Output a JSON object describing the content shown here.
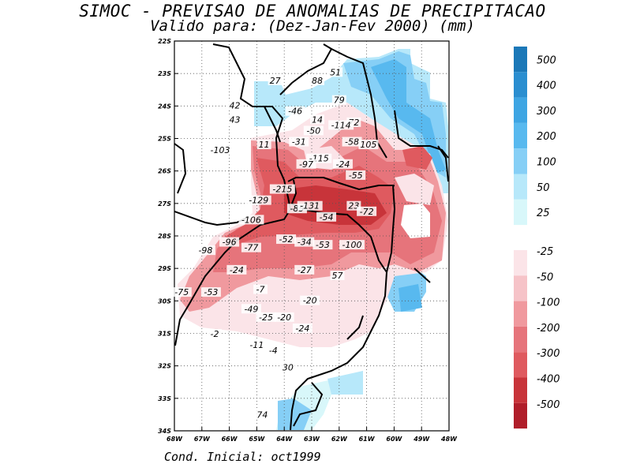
{
  "title": "SIMOC - PREVISAO DE ANOMALIAS DE PRECIPITACAO",
  "subtitle": "Valido para: (Dez-Jan-Fev 2000) (mm)",
  "footer": "Cond. Inicial: oct1999",
  "axes": {
    "lat_ticks": [
      "22S",
      "23S",
      "24S",
      "25S",
      "26S",
      "27S",
      "28S",
      "29S",
      "30S",
      "31S",
      "32S",
      "33S",
      "34S"
    ],
    "lon_ticks": [
      "68W",
      "67W",
      "66W",
      "65W",
      "64W",
      "63W",
      "62W",
      "61W",
      "60W",
      "49W",
      "48W"
    ]
  },
  "colorbar": {
    "positive": [
      "500",
      "400",
      "300",
      "200",
      "100",
      "50",
      "25"
    ],
    "negative": [
      "-25",
      "-50",
      "-100",
      "-200",
      "-300",
      "-400",
      "-500"
    ]
  },
  "labels": [
    {
      "text": "27",
      "lon": -63.5,
      "lat": -23.5
    },
    {
      "text": "88",
      "lon": -61.2,
      "lat": -23.5
    },
    {
      "text": "51",
      "lon": -60.2,
      "lat": -23.2
    },
    {
      "text": "79",
      "lon": -60.0,
      "lat": -24.2
    },
    {
      "text": "42",
      "lon": -65.7,
      "lat": -24.4
    },
    {
      "text": "43",
      "lon": -65.7,
      "lat": -24.9
    },
    {
      "text": "-46",
      "lon": -62.4,
      "lat": -24.6
    },
    {
      "text": "14",
      "lon": -61.2,
      "lat": -24.9
    },
    {
      "text": "72",
      "lon": -59.2,
      "lat": -25.0
    },
    {
      "text": "-50",
      "lon": -61.4,
      "lat": -25.3
    },
    {
      "text": "-114",
      "lon": -59.9,
      "lat": -25.1
    },
    {
      "text": "-103",
      "lon": -66.5,
      "lat": -26.0
    },
    {
      "text": "11",
      "lon": -64.1,
      "lat": -25.8
    },
    {
      "text": "-31",
      "lon": -62.2,
      "lat": -25.7
    },
    {
      "text": "-58",
      "lon": -59.3,
      "lat": -25.7
    },
    {
      "text": "105",
      "lon": -58.4,
      "lat": -25.8
    },
    {
      "text": "-115",
      "lon": -61.1,
      "lat": -26.3
    },
    {
      "text": "-24",
      "lon": -59.8,
      "lat": -26.5
    },
    {
      "text": "-97",
      "lon": -61.8,
      "lat": -26.5
    },
    {
      "text": "-55",
      "lon": -59.1,
      "lat": -26.9
    },
    {
      "text": "-215",
      "lon": -63.1,
      "lat": -27.4
    },
    {
      "text": "23",
      "lon": -59.2,
      "lat": -28.0
    },
    {
      "text": "-72",
      "lon": -58.5,
      "lat": -28.2
    },
    {
      "text": "-129",
      "lon": -64.4,
      "lat": -27.8
    },
    {
      "text": "-85",
      "lon": -62.3,
      "lat": -28.1
    },
    {
      "text": "-131",
      "lon": -61.6,
      "lat": -28.0
    },
    {
      "text": "-54",
      "lon": -60.7,
      "lat": -28.4
    },
    {
      "text": "-106",
      "lon": -64.8,
      "lat": -28.5
    },
    {
      "text": "-52",
      "lon": -62.9,
      "lat": -29.2
    },
    {
      "text": "-34",
      "lon": -61.9,
      "lat": -29.3
    },
    {
      "text": "-53",
      "lon": -60.9,
      "lat": -29.4
    },
    {
      "text": "-100",
      "lon": -59.3,
      "lat": -29.4
    },
    {
      "text": "-96",
      "lon": -66.0,
      "lat": -29.3
    },
    {
      "text": "-77",
      "lon": -64.8,
      "lat": -29.5
    },
    {
      "text": "-98",
      "lon": -67.3,
      "lat": -29.6
    },
    {
      "text": "-24",
      "lon": -65.6,
      "lat": -30.3
    },
    {
      "text": "-27",
      "lon": -61.9,
      "lat": -30.3
    },
    {
      "text": "57",
      "lon": -60.1,
      "lat": -30.5
    },
    {
      "text": "-7",
      "lon": -64.3,
      "lat": -31.0
    },
    {
      "text": "-75",
      "lon": -68.6,
      "lat": -31.1
    },
    {
      "text": "-53",
      "lon": -67.0,
      "lat": -31.1
    },
    {
      "text": "-20",
      "lon": -61.6,
      "lat": -31.4
    },
    {
      "text": "-49",
      "lon": -64.8,
      "lat": -31.7
    },
    {
      "text": "-25",
      "lon": -64.0,
      "lat": -32.0
    },
    {
      "text": "-20",
      "lon": -63.0,
      "lat": -32.0
    },
    {
      "text": "-24",
      "lon": -62.0,
      "lat": -32.4
    },
    {
      "text": "-2",
      "lon": -66.8,
      "lat": -32.6
    },
    {
      "text": "-11",
      "lon": -64.5,
      "lat": -33.0
    },
    {
      "text": "-4",
      "lon": -63.6,
      "lat": -33.2
    },
    {
      "text": "30",
      "lon": -62.8,
      "lat": -33.8
    },
    {
      "text": "74",
      "lon": -64.2,
      "lat": -35.5
    }
  ],
  "colors": {
    "pos": [
      "#1b78b8",
      "#2a8ed0",
      "#3ea5e3",
      "#58b9ef",
      "#86cff6",
      "#b7e8fa",
      "#d8f7fa"
    ],
    "neg": [
      "#fbe4e8",
      "#f6c3c8",
      "#f0999e",
      "#e6747b",
      "#df5a5f",
      "#c8343a",
      "#b01e2a"
    ]
  }
}
